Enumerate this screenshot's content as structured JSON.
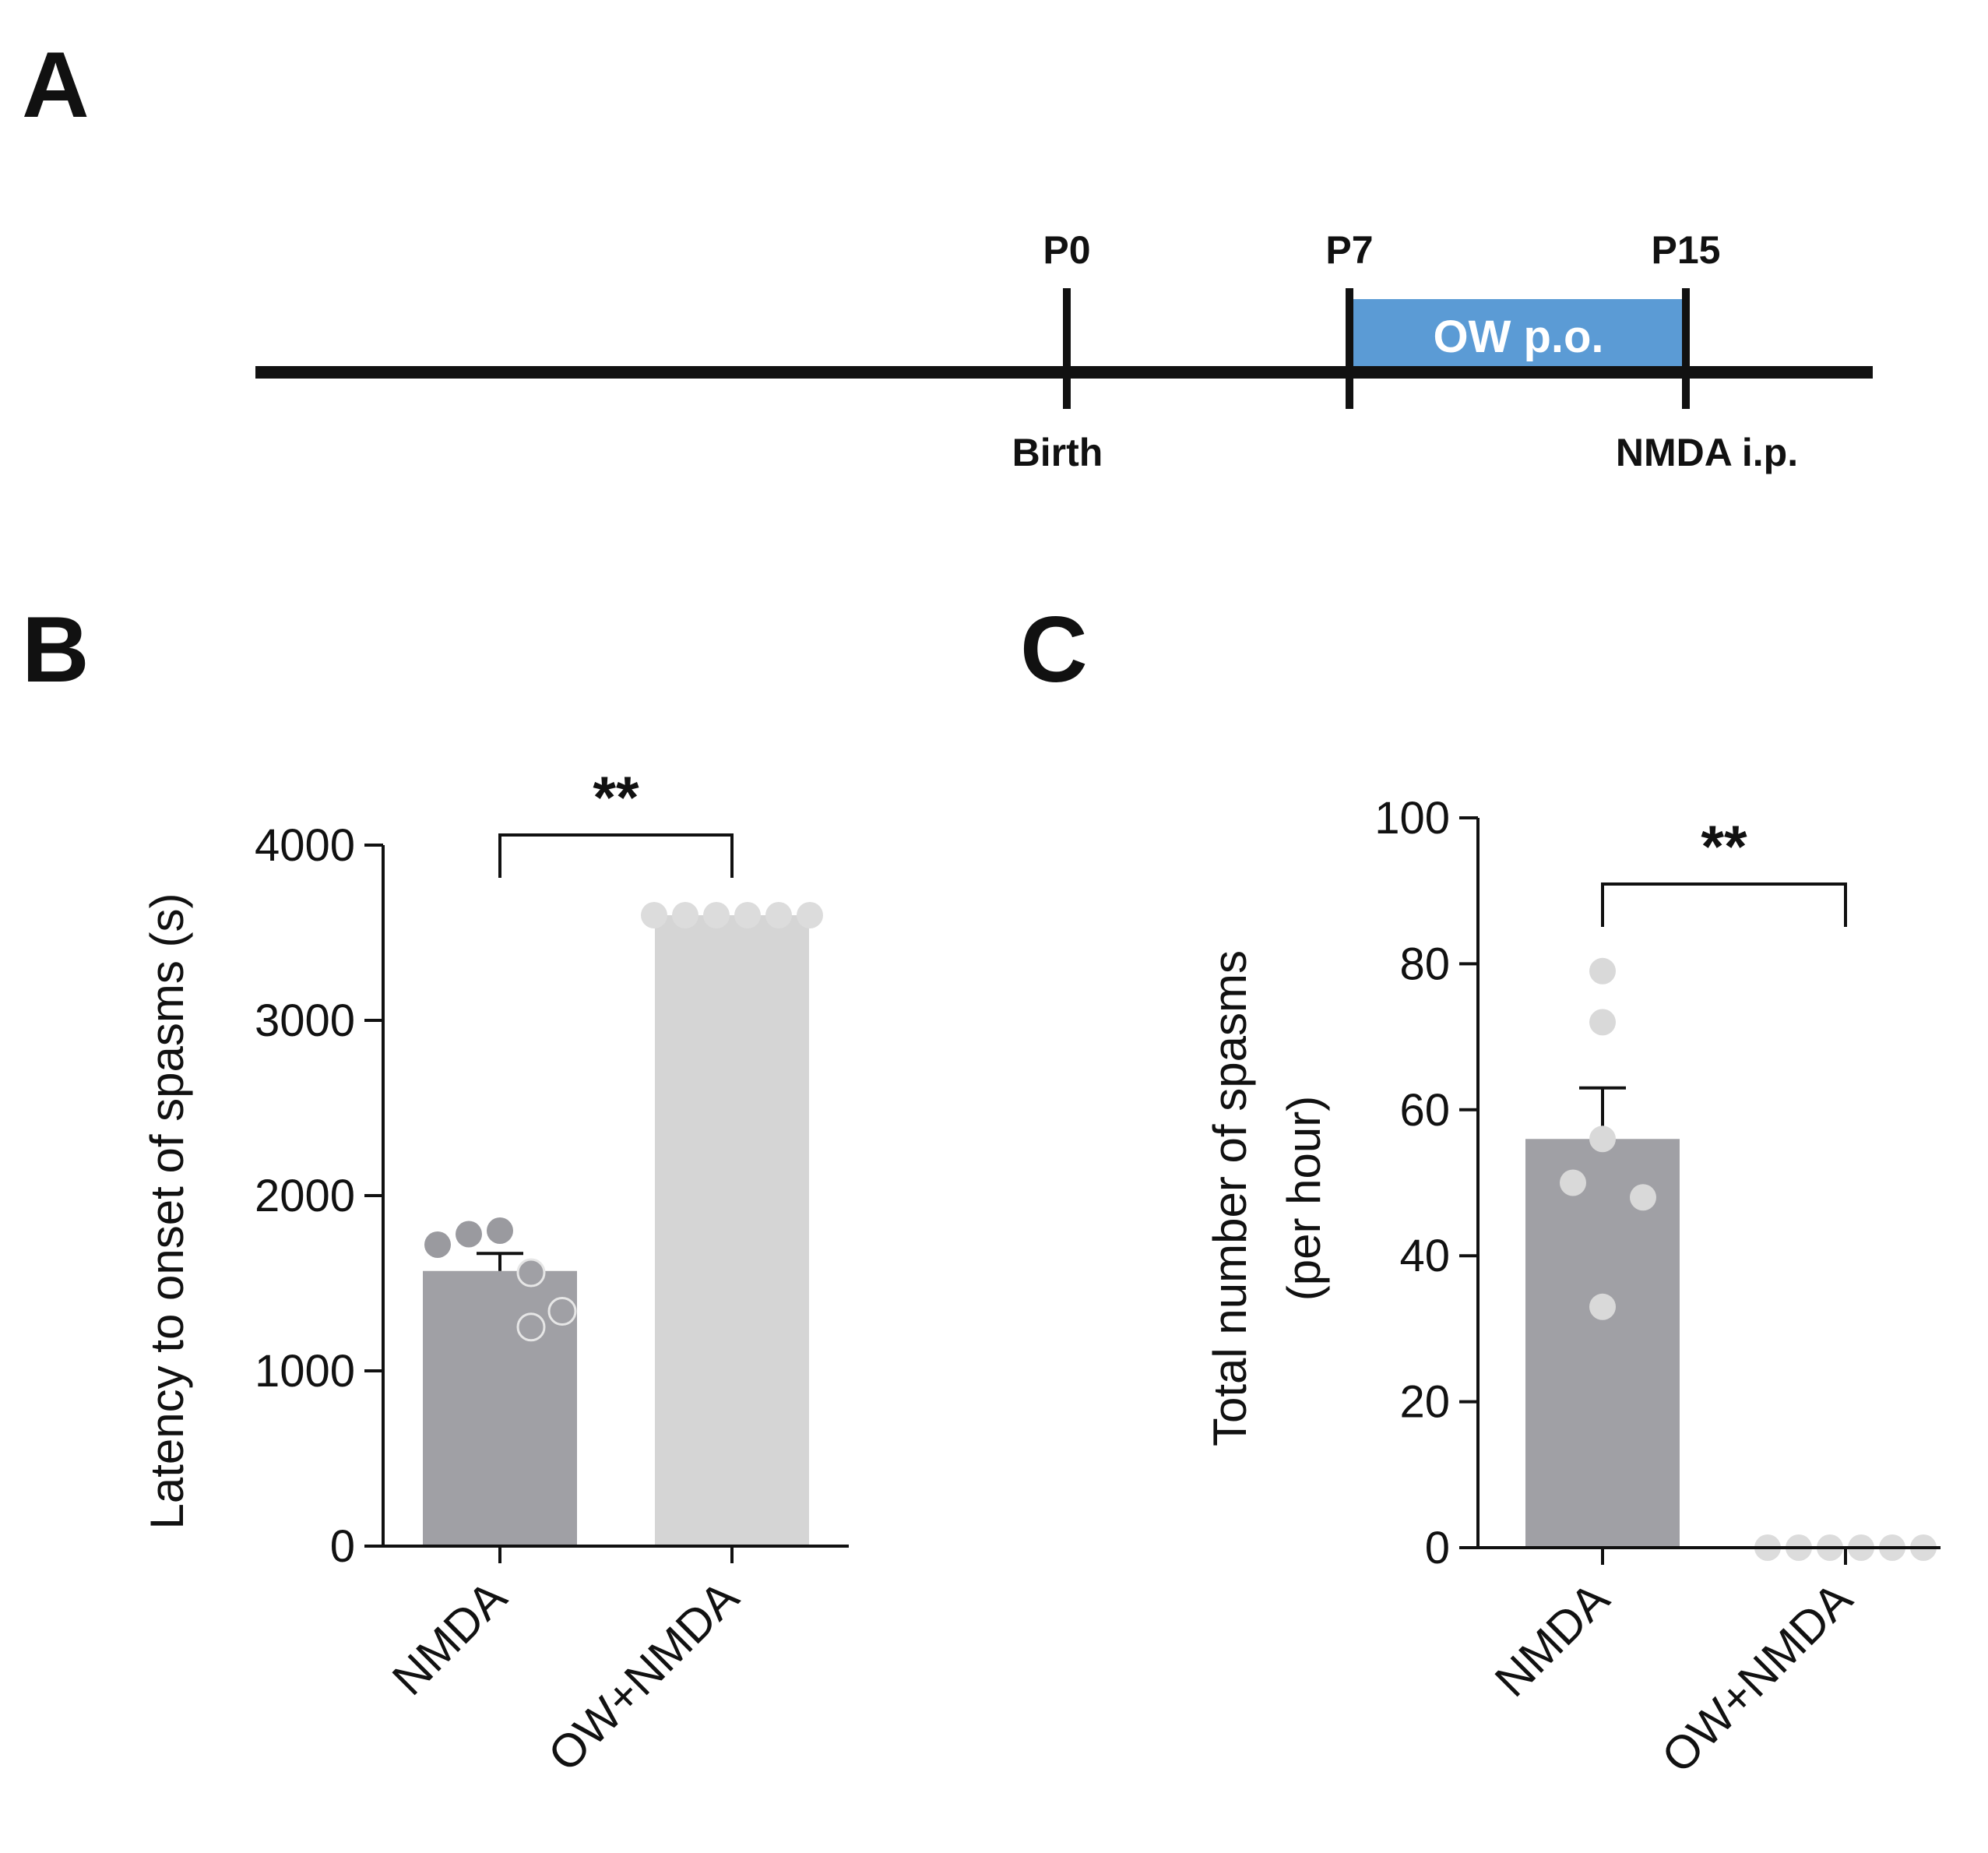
{
  "panels": {
    "a": "A",
    "b": "B",
    "c": "C"
  },
  "timeline": {
    "ticks": [
      {
        "top": "P0",
        "bottom": "Birth"
      },
      {
        "top": "P7",
        "bottom": ""
      },
      {
        "top": "P15",
        "bottom": "NMDA i.p."
      }
    ],
    "treatment_label": "OW p.o.",
    "treatment_color": "#5b9bd5"
  },
  "chart_data": [
    {
      "panel": "B",
      "type": "bar",
      "categories": [
        "NMDA",
        "OW+NMDA"
      ],
      "values": [
        1570,
        3600
      ],
      "sem": [
        100,
        0
      ],
      "individual_points": [
        [
          1720,
          1780,
          1800,
          1560,
          1340,
          1250
        ],
        [
          3600,
          3600,
          3600,
          3600,
          3600,
          3600
        ]
      ],
      "ylabel": "Latency to onset of spasms (s)",
      "xlabel": "",
      "ylim": [
        0,
        4000
      ],
      "yticks": [
        "0",
        "1000",
        "2000",
        "3000",
        "4000"
      ],
      "significance": "**",
      "bar_colors": [
        "#a0a0a5",
        "#d5d5d5"
      ]
    },
    {
      "panel": "C",
      "type": "bar",
      "categories": [
        "NMDA",
        "OW+NMDA"
      ],
      "values": [
        56,
        0
      ],
      "sem": [
        7,
        0
      ],
      "individual_points": [
        [
          79,
          72,
          56,
          50,
          48,
          33
        ],
        [
          0,
          0,
          0,
          0,
          0,
          0
        ]
      ],
      "ylabel": "Total number of spasms",
      "ylabel_line2": "(per hour)",
      "xlabel": "",
      "ylim": [
        0,
        100
      ],
      "yticks": [
        "0",
        "20",
        "40",
        "60",
        "80",
        "100"
      ],
      "significance": "**",
      "bar_colors": [
        "#a0a0a5",
        "#d5d5d5"
      ]
    }
  ]
}
